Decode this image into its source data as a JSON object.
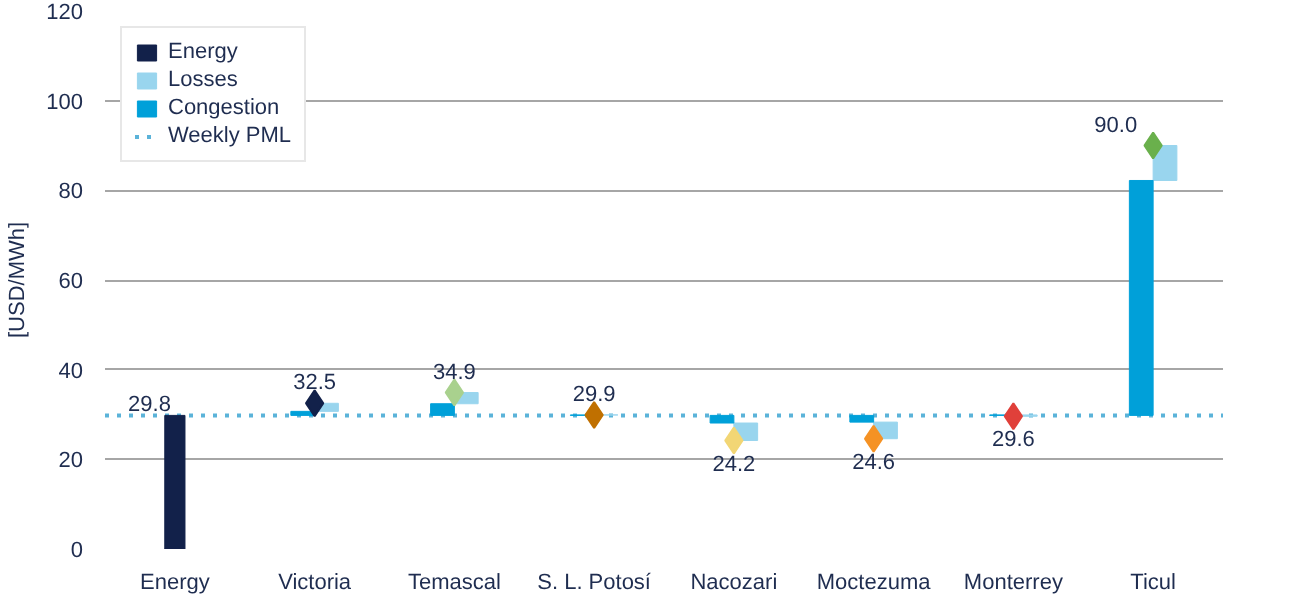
{
  "chart_data": {
    "type": "bar",
    "ylabel": "[USD/MWh]",
    "categories": [
      "Energy",
      "Victoria",
      "Temascal",
      "S. L. Potosí",
      "Nacozari",
      "Moctezuma",
      "Monterrey",
      "Ticul"
    ],
    "series": [
      {
        "name": "Energy",
        "color": "#12214a",
        "values": [
          29.8,
          null,
          null,
          null,
          null,
          null,
          null,
          null
        ],
        "value_labels": [
          "29.8",
          null,
          null,
          null,
          null,
          null,
          null,
          null
        ]
      },
      {
        "name": "Losses",
        "color": "#99d5ee",
        "values": [
          null,
          1.8,
          2.5,
          0.0,
          -3.9,
          -3.7,
          -0.3,
          7.8
        ],
        "base": [
          null,
          30.7,
          32.4,
          29.9,
          28.1,
          28.3,
          29.9,
          82.2
        ]
      },
      {
        "name": "Congestion",
        "color": "#00a0d9",
        "values": [
          null,
          0.9,
          2.6,
          0.1,
          -1.7,
          -1.5,
          0.1,
          52.4
        ],
        "base": [
          null,
          29.8,
          29.8,
          29.8,
          29.8,
          29.8,
          29.8,
          29.8
        ]
      },
      {
        "type": "scatter",
        "marker": "diamond",
        "colors": [
          null,
          "#12214a",
          "#a9d18e",
          "#c07000",
          "#f2d675",
          "#f59224",
          "#e0403a",
          "#6ab04c"
        ],
        "values": [
          null,
          32.5,
          34.9,
          29.9,
          24.2,
          24.6,
          29.6,
          90.0
        ],
        "value_labels": [
          null,
          "32.5",
          "34.9",
          "29.9",
          "24.2",
          "24.6",
          "29.6",
          "90.0"
        ]
      }
    ],
    "ref_lines": [
      {
        "axis": "y",
        "value": 29.8,
        "label": "Weekly PML",
        "color": "#5bb3d9",
        "line_style": "dotted"
      }
    ],
    "ylim": [
      0,
      120
    ],
    "yticks": [
      0,
      20,
      40,
      60,
      80,
      100,
      120
    ],
    "grid": "y",
    "legend": "top left"
  }
}
